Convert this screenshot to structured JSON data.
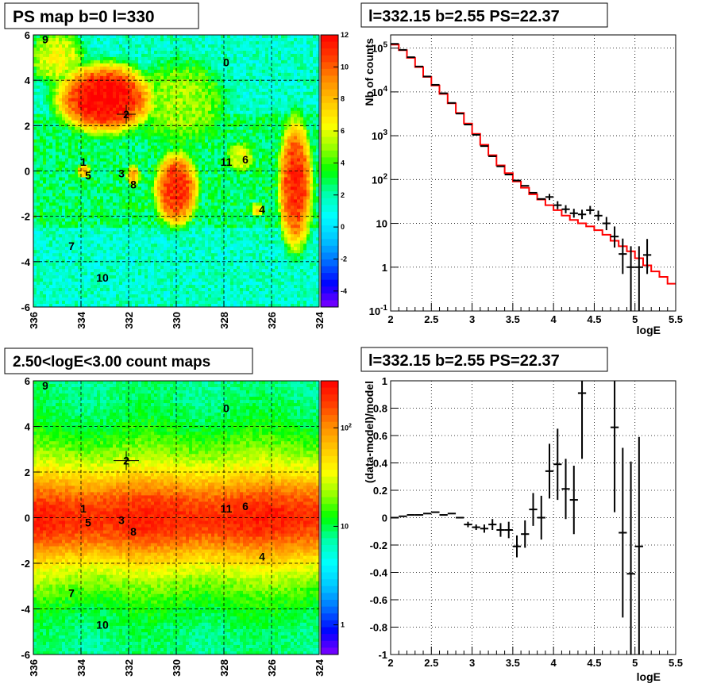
{
  "panels": {
    "map1": {
      "title": "PS map b=0 l=330",
      "xticks": [
        "336",
        "334",
        "332",
        "330",
        "328",
        "326",
        "324"
      ],
      "yticks": [
        "6",
        "4",
        "2",
        "0",
        "-2",
        "-4",
        "-6"
      ],
      "colorbar_ticks": [
        "12",
        "10",
        "8",
        "6",
        "4",
        "2",
        "0",
        "-2",
        "-4"
      ],
      "sources": [
        "0",
        "1",
        "2",
        "3",
        "4",
        "5",
        "6",
        "7",
        "8",
        "9",
        "10",
        "11"
      ]
    },
    "spectrum": {
      "title": "l=332.15 b=2.55 PS=22.37",
      "xlabel": "logE",
      "ylabel": "Nb of counts",
      "xticks": [
        "2",
        "2.5",
        "3",
        "3.5",
        "4",
        "4.5",
        "5",
        "5.5"
      ],
      "yticks": [
        "10^5",
        "10^4",
        "10^3",
        "10^2",
        "10",
        "1",
        "10^-1"
      ]
    },
    "map2": {
      "title": "2.50<logE<3.00 count maps",
      "xticks": [
        "336",
        "334",
        "332",
        "330",
        "328",
        "326",
        "324"
      ],
      "yticks": [
        "6",
        "4",
        "2",
        "0",
        "-2",
        "-4",
        "-6"
      ],
      "colorbar_ticks": [
        "10^2",
        "10",
        "1"
      ],
      "sources": [
        "0",
        "1",
        "2",
        "3",
        "4",
        "5",
        "6",
        "7",
        "8",
        "9",
        "10",
        "11"
      ]
    },
    "residual": {
      "title": "l=332.15 b=2.55 PS=22.37",
      "xlabel": "logE",
      "ylabel": "(data-model)/model",
      "xticks": [
        "2",
        "2.5",
        "3",
        "3.5",
        "4",
        "4.5",
        "5",
        "5.5"
      ],
      "yticks": [
        "1",
        "0.8",
        "0.6",
        "0.4",
        "0.2",
        "0",
        "-0.2",
        "-0.4",
        "-0.6",
        "-0.8",
        "-1"
      ]
    }
  },
  "chart_data": [
    {
      "type": "heatmap",
      "title": "PS map b=0 l=330",
      "xlim": [
        336,
        324
      ],
      "ylim": [
        -6,
        6
      ],
      "zlim": [
        -5,
        12
      ],
      "sources": [
        {
          "id": "0",
          "l": 327.9,
          "b": 4.8
        },
        {
          "id": "1",
          "l": 333.9,
          "b": 0.4
        },
        {
          "id": "2",
          "l": 332.1,
          "b": 2.5
        },
        {
          "id": "3",
          "l": 332.3,
          "b": -0.1
        },
        {
          "id": "4",
          "l": 326.4,
          "b": -1.7
        },
        {
          "id": "5",
          "l": 333.7,
          "b": -0.2
        },
        {
          "id": "6",
          "l": 327.1,
          "b": 0.5
        },
        {
          "id": "7",
          "l": 334.4,
          "b": -3.3
        },
        {
          "id": "8",
          "l": 331.8,
          "b": -0.6
        },
        {
          "id": "9",
          "l": 335.5,
          "b": 5.8
        },
        {
          "id": "10",
          "l": 333.1,
          "b": -4.7
        },
        {
          "id": "11",
          "l": 327.9,
          "b": 0.4
        }
      ],
      "blobs": [
        {
          "l": 333.0,
          "b": 3.2,
          "rl": 2.0,
          "rb": 1.5,
          "z": 12
        },
        {
          "l": 330.0,
          "b": -0.8,
          "rl": 0.9,
          "rb": 1.6,
          "z": 11
        },
        {
          "l": 325.0,
          "b": -0.6,
          "rl": 0.7,
          "rb": 2.8,
          "z": 11
        },
        {
          "l": 333.9,
          "b": 0.0,
          "rl": 0.3,
          "rb": 0.3,
          "z": 8
        },
        {
          "l": 331.8,
          "b": -0.2,
          "rl": 0.3,
          "rb": 0.5,
          "z": 8
        },
        {
          "l": 327.3,
          "b": 0.6,
          "rl": 0.6,
          "rb": 0.7,
          "z": 6
        },
        {
          "l": 326.6,
          "b": -1.7,
          "rl": 0.3,
          "rb": 0.3,
          "z": 7
        },
        {
          "l": 335.0,
          "b": 5.0,
          "rl": 1.2,
          "rb": 1.2,
          "z": 6
        },
        {
          "l": 329.8,
          "b": 3.0,
          "rl": 2.0,
          "rb": 2.0,
          "z": 5
        }
      ]
    },
    {
      "type": "line",
      "title": "l=332.15 b=2.55 PS=22.37",
      "xlabel": "logE",
      "ylabel": "Nb of counts",
      "xlim": [
        2,
        5.5
      ],
      "ylim": [
        0.1,
        200000
      ],
      "yscale": "log",
      "grid": true,
      "series": [
        {
          "style": "model-histogram",
          "color": "#ff0000",
          "bin_edges": [
            2.0,
            2.1,
            2.2,
            2.3,
            2.4,
            2.5,
            2.6,
            2.7,
            2.8,
            2.9,
            3.0,
            3.1,
            3.2,
            3.3,
            3.4,
            3.5,
            3.6,
            3.7,
            3.8,
            3.9,
            4.0,
            4.1,
            4.2,
            4.3,
            4.4,
            4.5,
            4.6,
            4.7,
            4.8,
            4.9,
            5.0,
            5.1,
            5.2,
            5.3,
            5.4,
            5.5
          ],
          "values": [
            120000,
            90000,
            60000,
            37000,
            22000,
            14000,
            9000,
            5500,
            3300,
            1900,
            1100,
            620,
            360,
            210,
            140,
            90,
            65,
            46,
            35,
            26,
            20,
            15,
            12,
            10,
            8.5,
            7,
            5.5,
            4,
            3,
            2.3,
            1.6,
            1.1,
            0.8,
            0.6,
            0.42
          ]
        },
        {
          "style": "data-points",
          "color": "#000000",
          "x": [
            2.05,
            2.15,
            2.25,
            2.35,
            2.45,
            2.55,
            2.65,
            2.75,
            2.85,
            2.95,
            3.05,
            3.15,
            3.25,
            3.35,
            3.45,
            3.55,
            3.65,
            3.75,
            3.85,
            3.95,
            4.05,
            4.15,
            4.25,
            4.35,
            4.45,
            4.55,
            4.65,
            4.75,
            4.85,
            4.95,
            5.05,
            5.15
          ],
          "y": [
            125000,
            91000,
            62000,
            38000,
            22500,
            14500,
            9300,
            5600,
            3200,
            1800,
            1050,
            580,
            340,
            200,
            130,
            95,
            72,
            50,
            36,
            40,
            26,
            21,
            17,
            16,
            20,
            15,
            10,
            5,
            2,
            1,
            1,
            1.9
          ],
          "err_low": [
            0,
            0,
            0,
            0,
            0,
            0,
            0,
            0,
            0,
            0,
            0,
            0,
            0,
            0,
            0,
            0,
            0,
            0,
            0,
            6,
            5,
            4,
            3.5,
            3.5,
            4,
            3.5,
            3,
            2.2,
            1.3,
            0.95,
            0.95,
            1.2
          ],
          "err_high": [
            0,
            0,
            0,
            0,
            0,
            0,
            0,
            0,
            0,
            0,
            0,
            0,
            0,
            0,
            0,
            0,
            0,
            0,
            0,
            7,
            6,
            5,
            4.5,
            4.5,
            5,
            4.5,
            4,
            3.5,
            2.5,
            2,
            2,
            2.5
          ]
        }
      ]
    },
    {
      "type": "heatmap",
      "title": "2.50<logE<3.00 count maps",
      "xlim": [
        336,
        324
      ],
      "ylim": [
        -6,
        6
      ],
      "zscale": "log",
      "zlim": [
        0.5,
        300
      ],
      "sources": [
        {
          "id": "0",
          "l": 327.9,
          "b": 4.8
        },
        {
          "id": "1",
          "l": 333.9,
          "b": 0.4
        },
        {
          "id": "2",
          "l": 332.1,
          "b": 2.5
        },
        {
          "id": "3",
          "l": 332.3,
          "b": -0.1
        },
        {
          "id": "4",
          "l": 326.4,
          "b": -1.7
        },
        {
          "id": "5",
          "l": 333.7,
          "b": -0.2
        },
        {
          "id": "6",
          "l": 327.1,
          "b": 0.5
        },
        {
          "id": "7",
          "l": 334.4,
          "b": -3.3
        },
        {
          "id": "8",
          "l": 331.8,
          "b": -0.6
        },
        {
          "id": "9",
          "l": 335.5,
          "b": 5.8
        },
        {
          "id": "10",
          "l": 333.1,
          "b": -4.7
        },
        {
          "id": "11",
          "l": 327.9,
          "b": 0.4
        }
      ]
    },
    {
      "type": "scatter",
      "title": "l=332.15 b=2.55 PS=22.37",
      "xlabel": "logE",
      "ylabel": "(data-model)/model",
      "xlim": [
        2,
        5.5
      ],
      "ylim": [
        -1,
        1
      ],
      "grid": true,
      "x": [
        2.05,
        2.15,
        2.25,
        2.35,
        2.45,
        2.55,
        2.65,
        2.75,
        2.85,
        2.95,
        3.05,
        3.15,
        3.25,
        3.35,
        3.45,
        3.55,
        3.65,
        3.75,
        3.85,
        3.95,
        4.05,
        4.15,
        4.25,
        4.35,
        4.75,
        4.85,
        4.95,
        5.05
      ],
      "y": [
        0.0,
        0.01,
        0.02,
        0.02,
        0.03,
        0.04,
        0.02,
        0.03,
        0.0,
        -0.05,
        -0.07,
        -0.08,
        -0.05,
        -0.09,
        -0.09,
        -0.21,
        -0.12,
        0.06,
        0.0,
        0.34,
        0.39,
        0.21,
        0.13,
        0.91,
        0.66,
        -0.11,
        -0.41,
        -0.21
      ],
      "err": [
        0,
        0,
        0,
        0,
        0,
        0,
        0,
        0,
        0,
        0.02,
        0.02,
        0.03,
        0.04,
        0.05,
        0.06,
        0.08,
        0.1,
        0.12,
        0.16,
        0.2,
        0.26,
        0.22,
        0.25,
        0.48,
        0.62,
        0.62,
        0.82,
        0.8
      ]
    }
  ],
  "colors": {
    "model": "#ff0000",
    "data": "#000000",
    "grid": "#000000"
  }
}
